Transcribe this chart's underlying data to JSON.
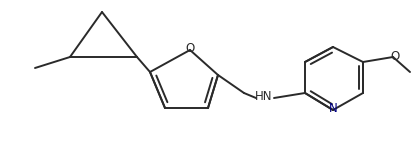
{
  "bg_color": "#ffffff",
  "line_color": "#2a2a2a",
  "n_color": "#000080",
  "lw": 1.4,
  "font_size": 8.5,
  "figsize": [
    4.16,
    1.62
  ],
  "dpi": 100,
  "xlim": [
    0,
    416
  ],
  "ylim": [
    0,
    162
  ]
}
